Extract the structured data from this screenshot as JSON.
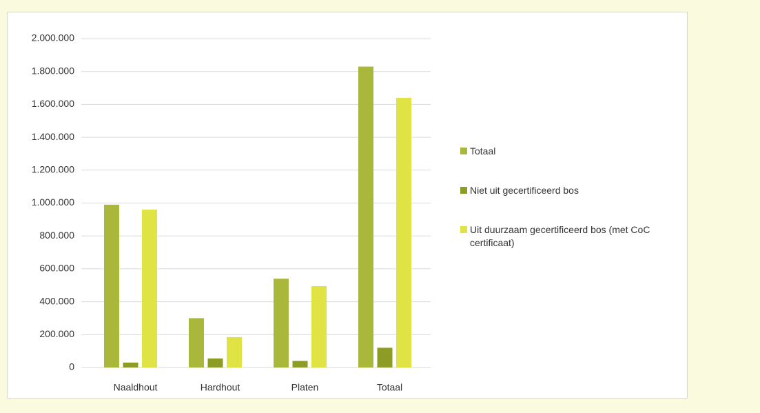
{
  "chart_data": {
    "type": "bar",
    "categories": [
      "Naaldhout",
      "Hardhout",
      "Platen",
      "Totaal"
    ],
    "series": [
      {
        "name": "Totaal",
        "color": "#a9b73a",
        "values": [
          990000,
          300000,
          540000,
          1830000
        ]
      },
      {
        "name": "Niet uit gecertificeerd bos",
        "color": "#8c9c24",
        "values": [
          30000,
          55000,
          40000,
          120000
        ]
      },
      {
        "name": "Uit duurzaam gecertificeerd bos (met CoC certificaat)",
        "color": "#e0e344",
        "values": [
          960000,
          185000,
          495000,
          1640000
        ]
      }
    ],
    "ylim": [
      0,
      2000000
    ],
    "yticks": [
      0,
      {
        "value": 200000,
        "label": "200.000"
      },
      {
        "value": 400000,
        "label": "400.000"
      },
      {
        "value": 600000,
        "label": "600.000"
      },
      {
        "value": 800000,
        "label": "800.000"
      },
      {
        "value": 1000000,
        "label": "1.000.000"
      },
      {
        "value": 1200000,
        "label": "1.200.000"
      },
      {
        "value": 1400000,
        "label": "1.400.000"
      },
      {
        "value": 1600000,
        "label": "1.600.000"
      },
      {
        "value": 1800000,
        "label": "1.800.000"
      },
      {
        "value": 2000000,
        "label": "2.000.000"
      }
    ],
    "grid": true,
    "legend": "right"
  }
}
